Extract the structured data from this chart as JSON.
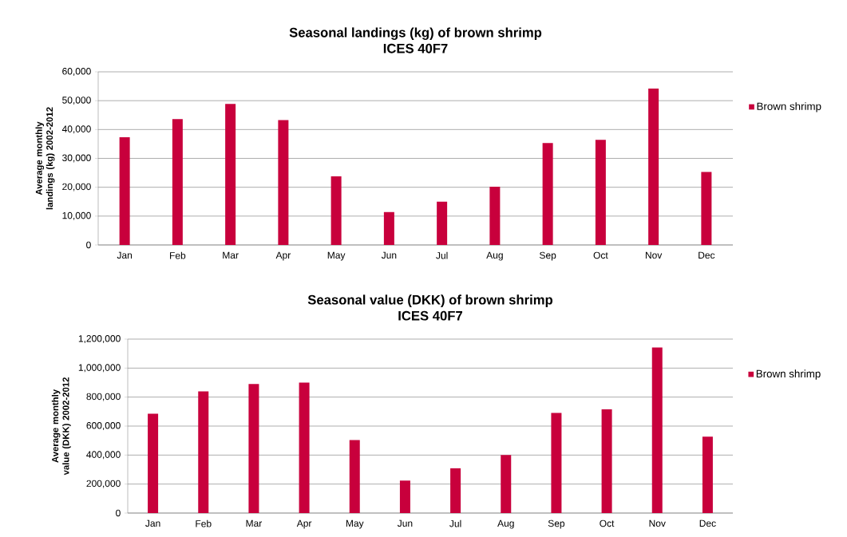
{
  "chart_data": [
    {
      "type": "bar",
      "title": "Seasonal landings (kg) of brown shrimp",
      "subtitle": "ICES 40F7",
      "ylabel": "Average monthly landings (kg) 2002-2012",
      "categories": [
        "Jan",
        "Feb",
        "Mar",
        "Apr",
        "May",
        "Jun",
        "Jul",
        "Aug",
        "Sep",
        "Oct",
        "Nov",
        "Dec"
      ],
      "series": [
        {
          "name": "Brown shrimp",
          "color": "#c8003c",
          "values": [
            37300,
            43600,
            48900,
            43300,
            23800,
            11400,
            15000,
            20200,
            35300,
            36400,
            54200,
            25300
          ]
        }
      ],
      "ylim": [
        0,
        60000
      ],
      "yticks": [
        0,
        {
          "value": 10000,
          "label": "10,000"
        },
        {
          "value": 20000,
          "label": "20,000"
        },
        {
          "value": 30000,
          "label": "30,000"
        },
        {
          "value": 40000,
          "label": "40,000"
        },
        {
          "value": 50000,
          "label": "50,000"
        },
        {
          "value": 60000,
          "label": "60,000"
        }
      ],
      "grid": "y",
      "legend": "right"
    },
    {
      "type": "bar",
      "title": "Seasonal value (DKK) of brown shrimp",
      "subtitle": "ICES 40F7",
      "ylabel": "Average monthly value (DKK) 2002-2012",
      "categories": [
        "Jan",
        "Feb",
        "Mar",
        "Apr",
        "May",
        "Jun",
        "Jul",
        "Aug",
        "Sep",
        "Oct",
        "Nov",
        "Dec"
      ],
      "series": [
        {
          "name": "Brown shrimp",
          "color": "#c8003c",
          "values": [
            685000,
            839000,
            891000,
            900000,
            503000,
            224000,
            309000,
            400000,
            691000,
            715000,
            1142000,
            527000
          ]
        }
      ],
      "ylim": [
        0,
        1200000
      ],
      "yticks": [
        0,
        {
          "value": 200000,
          "label": "200,000"
        },
        {
          "value": 400000,
          "label": "400,000"
        },
        {
          "value": 600000,
          "label": "600,000"
        },
        {
          "value": 800000,
          "label": "800,000"
        },
        {
          "value": 1000000,
          "label": "1,000,000"
        },
        {
          "value": 1200000,
          "label": "1,200,000"
        }
      ],
      "grid": "y",
      "legend": "right"
    }
  ]
}
